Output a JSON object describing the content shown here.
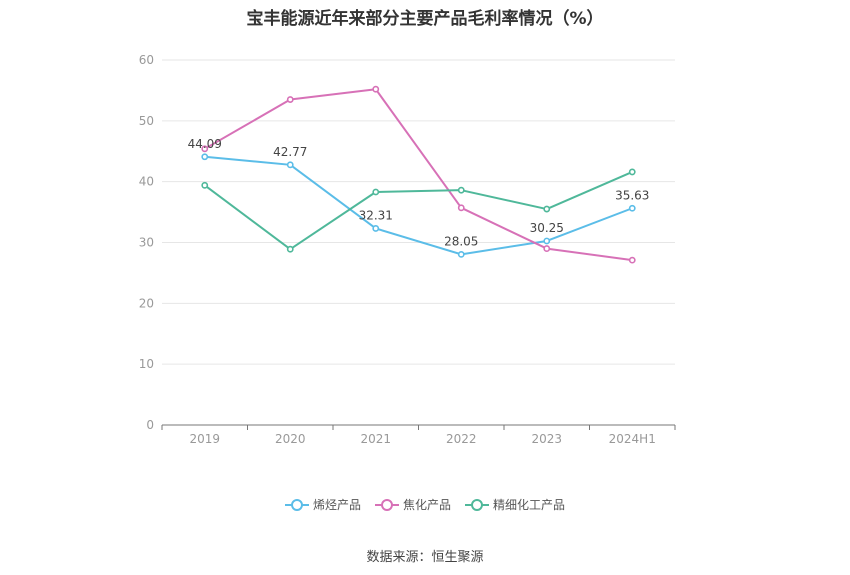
{
  "chart_data": {
    "type": "line",
    "title": "宝丰能源近年来部分主要产品毛利率情况（%）",
    "categories": [
      "2019",
      "2020",
      "2021",
      "2022",
      "2023",
      "2024H1"
    ],
    "ylim": [
      0,
      60
    ],
    "yticks": [
      0,
      10,
      20,
      30,
      40,
      50,
      60
    ],
    "grid": true,
    "legend_position": "bottom",
    "series": [
      {
        "name": "烯烃产品",
        "color": "#5bbde8",
        "values": [
          44.09,
          42.77,
          32.31,
          28.05,
          30.25,
          35.63
        ],
        "labels": [
          "44.09",
          "42.77",
          "32.31",
          "28.05",
          "30.25",
          "35.63"
        ]
      },
      {
        "name": "焦化产品",
        "color": "#d771b7",
        "values": [
          45.4,
          53.5,
          55.2,
          35.7,
          29.0,
          27.1
        ]
      },
      {
        "name": "精细化工产品",
        "color": "#4fb89a",
        "values": [
          39.4,
          28.9,
          38.3,
          38.6,
          35.5,
          41.6
        ]
      }
    ]
  },
  "source": "数据来源：恒生聚源"
}
